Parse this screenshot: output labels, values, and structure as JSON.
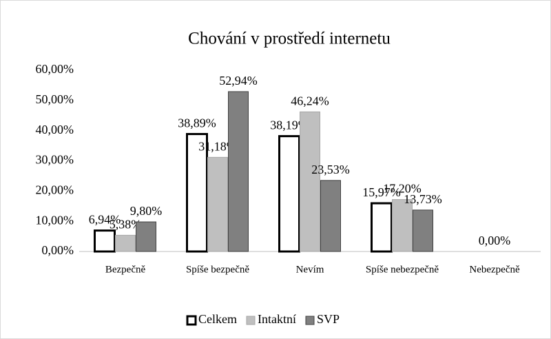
{
  "chart_data": {
    "type": "bar",
    "title": "Chování v prostředí internetu",
    "categories": [
      "Bezpečně",
      "Spíše bezpečně",
      "Nevím",
      "Spíše nebezpečně",
      "Nebezpečně"
    ],
    "series": [
      {
        "name": "Celkem",
        "color": "#ffffff",
        "values": [
          6.94,
          38.89,
          38.19,
          15.97,
          0
        ],
        "value_labels": [
          "6,94%",
          "38,89%",
          "38,19%",
          "15,97%",
          null
        ]
      },
      {
        "name": "Intaktní",
        "color": "#bfbfbf",
        "values": [
          5.38,
          31.18,
          46.24,
          17.2,
          0
        ],
        "value_labels": [
          "5,38%",
          "31,18%",
          "46,24%",
          "17,20%",
          "0,00%"
        ]
      },
      {
        "name": "SVP",
        "color": "#808080",
        "values": [
          9.8,
          52.94,
          23.53,
          13.73,
          0
        ],
        "value_labels": [
          "9,80%",
          "52,94%",
          "23,53%",
          "13,73%",
          null
        ]
      }
    ],
    "ylim": [
      0,
      60
    ],
    "yticks": [
      {
        "value": 0,
        "label": "0,00%"
      },
      {
        "value": 10,
        "label": "10,00%"
      },
      {
        "value": 20,
        "label": "20,00%"
      },
      {
        "value": 30,
        "label": "30,00%"
      },
      {
        "value": 40,
        "label": "40,00%"
      },
      {
        "value": 50,
        "label": "50,00%"
      },
      {
        "value": 60,
        "label": "60,00%"
      }
    ],
    "grid": false,
    "legend": "bottom"
  }
}
